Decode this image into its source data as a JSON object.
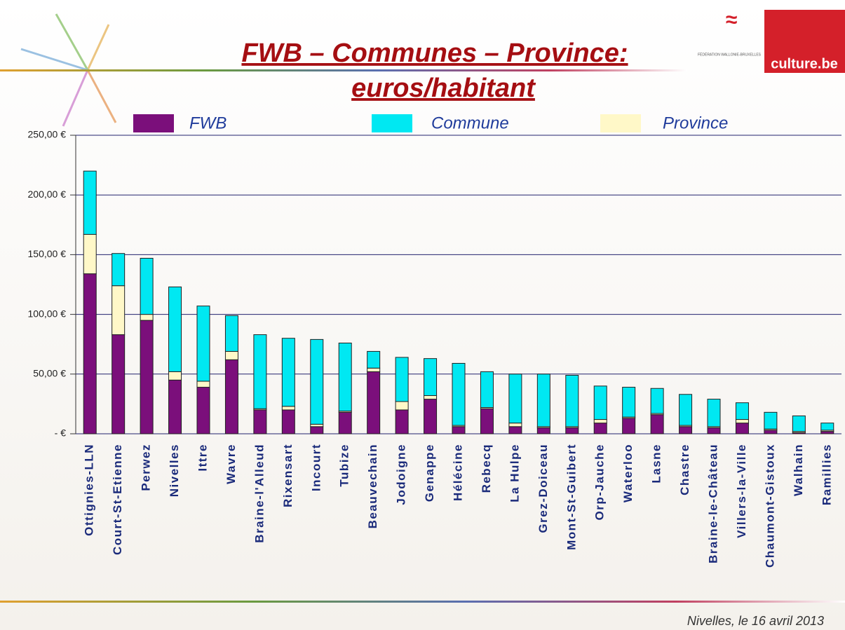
{
  "chart_data": {
    "type": "stacked_bar",
    "title": [
      "FWB – Communes – Province:",
      "euros/habitant"
    ],
    "categories": [
      "Ottignies-LLN",
      "Court-St-Etienne",
      "Perwez",
      "Nivelles",
      "Ittre",
      "Wavre",
      "Braine-l'Alleud",
      "Rixensart",
      "Incourt",
      "Tubize",
      "Beauvechain",
      "Jodoigne",
      "Genappe",
      "Hélécine",
      "Rebecq",
      "La Hulpe",
      "Grez-Doiceau",
      "Mont-St-Guibert",
      "Orp-Jauche",
      "Waterloo",
      "Lasne",
      "Chastre",
      "Braine-le-Château",
      "Villers-la-Ville",
      "Chaumont-Gistoux",
      "Walhain",
      "Ramillies"
    ],
    "series": [
      {
        "name": "FWB",
        "color": "#7b0f7b",
        "values": [
          134,
          83,
          95,
          45,
          39,
          62,
          20,
          20,
          6,
          18,
          52,
          20,
          29,
          6,
          21,
          6,
          5,
          5,
          9,
          13,
          16,
          6,
          5,
          9,
          3,
          1,
          2
        ]
      },
      {
        "name": "Commune",
        "color": "#00e8f2",
        "values": [
          53,
          27,
          47,
          71,
          63,
          30,
          62,
          57,
          71,
          57,
          14,
          37,
          31,
          52,
          30,
          41,
          44,
          43,
          28,
          25,
          21,
          26,
          23,
          14,
          14,
          13,
          6
        ]
      },
      {
        "name": "Province",
        "color": "#fff8c8",
        "values": [
          33,
          41,
          5,
          7,
          5,
          7,
          1,
          3,
          2,
          1,
          3,
          7,
          3,
          1,
          1,
          3,
          1,
          1,
          3,
          1,
          1,
          1,
          1,
          3,
          1,
          1,
          1
        ]
      }
    ],
    "ylim": [
      0,
      250
    ],
    "yticks": [
      {
        "value": 0,
        "label": "-    €"
      },
      {
        "value": 50,
        "label": "50,00 €"
      },
      {
        "value": 100,
        "label": "100,00 €"
      },
      {
        "value": 150,
        "label": "150,00 €"
      },
      {
        "value": 200,
        "label": "200,00 €"
      },
      {
        "value": 250,
        "label": "250,00 €"
      }
    ],
    "grid": true
  },
  "logos": {
    "federation": "FÉDÉRATION WALLONIE-BRUXELLES",
    "culture": "culture.be"
  },
  "footer": "Nivelles, le 16 avril 2013"
}
